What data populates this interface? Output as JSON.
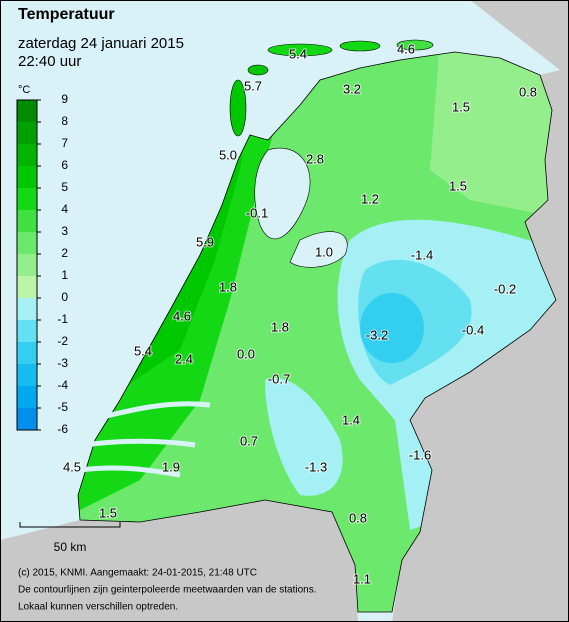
{
  "header": {
    "title": "Temperatuur",
    "date": "zaterdag 24 januari 2015",
    "time": "22:40 uur"
  },
  "legend": {
    "unit": "°C",
    "ticks": [
      9,
      8,
      7,
      6,
      5,
      4,
      3,
      2,
      1,
      0,
      -1,
      -2,
      -3,
      -4,
      -5,
      -6
    ],
    "colors": [
      "#008c00",
      "#00a000",
      "#00b400",
      "#00c800",
      "#14d814",
      "#40e040",
      "#6ce86c",
      "#94ee8c",
      "#bcf4a8",
      "#a4f0f4",
      "#64e0f0",
      "#34cff0",
      "#14bcf0",
      "#00a8f0",
      "#0090ec"
    ]
  },
  "stations": [
    "5.4",
    "4.6",
    "5.7",
    "3.2",
    "1.5",
    "0.8",
    "5.0",
    "2.8",
    "1.5",
    "-0.1",
    "1.2",
    "5.9",
    "1.0",
    "-1.4",
    "-0.2",
    "1.8",
    "4.6",
    "1.8",
    "-3.2",
    "-0.4",
    "5.4",
    "2.4",
    "0.0",
    "-0.7",
    "1.4",
    "0.7",
    "-1.6",
    "-1.3",
    "4.5",
    "1.9",
    "1.5",
    "0.8",
    "1.1"
  ],
  "scale": {
    "label": "50 km"
  },
  "footer": {
    "lines": [
      "(c) 2015, KNMI. Aangemaakt: 24-01-2015, 21:48 UTC",
      "De contourlijnen zijn geinterpoleerde meetwaarden van de stations.",
      "Lokaal kunnen verschillen optreden."
    ]
  }
}
